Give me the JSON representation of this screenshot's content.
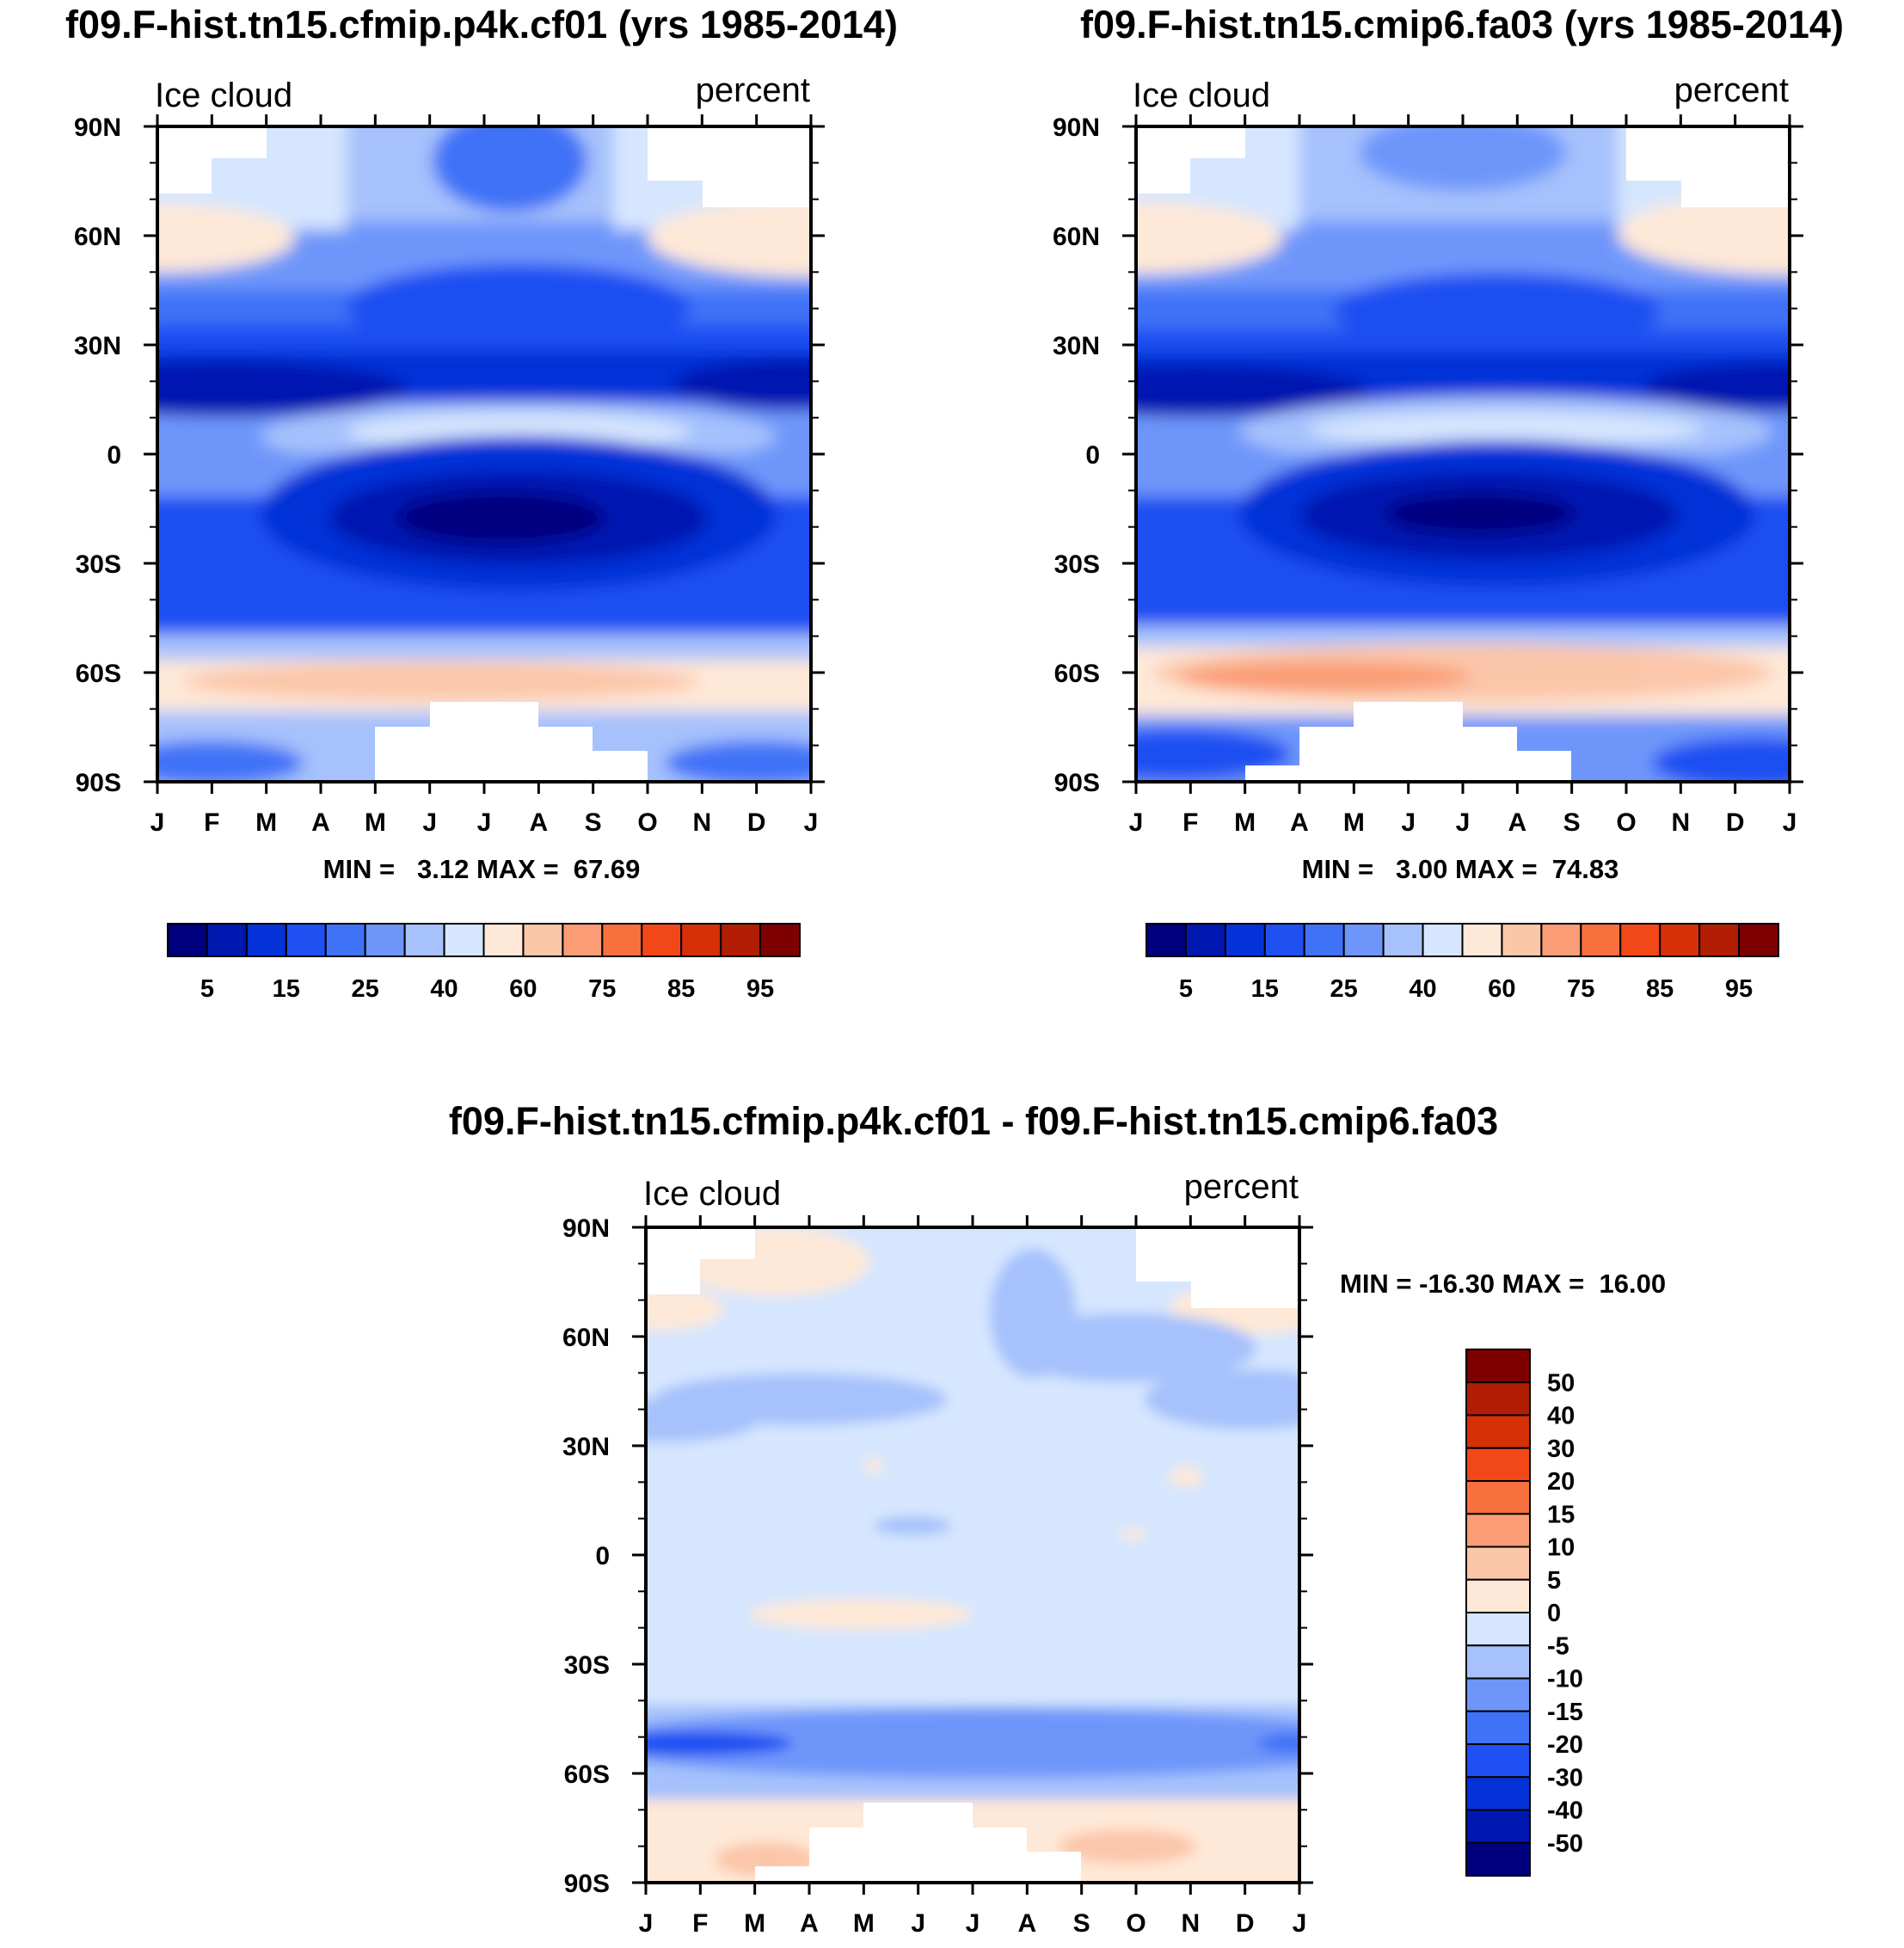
{
  "chart_data": [
    {
      "type": "heatmap",
      "title": "f09.F-hist.tn15.cfmip.p4k.cf01 (yrs 1985-2014)",
      "left_label": "Ice cloud",
      "right_label": "percent",
      "x_tick_labels": [
        "J",
        "F",
        "M",
        "A",
        "M",
        "J",
        "J",
        "A",
        "S",
        "O",
        "N",
        "D",
        "J"
      ],
      "y_tick_labels": [
        "90N",
        "60N",
        "30N",
        "0",
        "30S",
        "60S",
        "90S"
      ],
      "y_values": [
        90,
        60,
        30,
        0,
        -30,
        -60,
        -90
      ],
      "xlim": [
        0,
        12
      ],
      "ylim": [
        -90,
        90
      ],
      "minmax_text": "MIN =   3.12 MAX =  67.69",
      "min": 3.12,
      "max": 67.69,
      "colorbar_orientation": "horizontal",
      "colorbar_tick_labels": [
        "5",
        "15",
        "25",
        "40",
        "60",
        "75",
        "85",
        "95"
      ]
    },
    {
      "type": "heatmap",
      "title": "f09.F-hist.tn15.cmip6.fa03 (yrs 1985-2014)",
      "left_label": "Ice cloud",
      "right_label": "percent",
      "x_tick_labels": [
        "J",
        "F",
        "M",
        "A",
        "M",
        "J",
        "J",
        "A",
        "S",
        "O",
        "N",
        "D",
        "J"
      ],
      "y_tick_labels": [
        "90N",
        "60N",
        "30N",
        "0",
        "30S",
        "60S",
        "90S"
      ],
      "y_values": [
        90,
        60,
        30,
        0,
        -30,
        -60,
        -90
      ],
      "xlim": [
        0,
        12
      ],
      "ylim": [
        -90,
        90
      ],
      "minmax_text": "MIN =   3.00 MAX =  74.83",
      "min": 3.0,
      "max": 74.83,
      "colorbar_orientation": "horizontal",
      "colorbar_tick_labels": [
        "5",
        "15",
        "25",
        "40",
        "60",
        "75",
        "85",
        "95"
      ]
    },
    {
      "type": "heatmap",
      "title": "f09.F-hist.tn15.cfmip.p4k.cf01 - f09.F-hist.tn15.cmip6.fa03",
      "left_label": "Ice cloud",
      "right_label": "percent",
      "x_tick_labels": [
        "J",
        "F",
        "M",
        "A",
        "M",
        "J",
        "J",
        "A",
        "S",
        "O",
        "N",
        "D",
        "J"
      ],
      "y_tick_labels": [
        "90N",
        "60N",
        "30N",
        "0",
        "30S",
        "60S",
        "90S"
      ],
      "y_values": [
        90,
        60,
        30,
        0,
        -30,
        -60,
        -90
      ],
      "xlim": [
        0,
        12
      ],
      "ylim": [
        -90,
        90
      ],
      "minmax_text": "MIN = -16.30 MAX =  16.00",
      "min": -16.3,
      "max": 16.0,
      "colorbar_orientation": "vertical",
      "colorbar_tick_labels": [
        "50",
        "40",
        "30",
        "20",
        "15",
        "10",
        "5",
        "0",
        "-5",
        "-10",
        "-15",
        "-20",
        "-30",
        "-40",
        "-50"
      ]
    }
  ],
  "colorbars": {
    "abs_colors": [
      "#00007f",
      "#0018b0",
      "#0532d8",
      "#1e50f2",
      "#3f72f7",
      "#6e96fa",
      "#a6c1fc",
      "#d5e6fe",
      "#fee8d7",
      "#fcc6a9",
      "#fa9c75",
      "#f7703e",
      "#f24818",
      "#d63008",
      "#b21e04",
      "#7e0000"
    ],
    "diff_colors_top_to_bottom": [
      "#7e0000",
      "#b21e04",
      "#d63008",
      "#f24818",
      "#f7703e",
      "#fa9c75",
      "#fcc6a9",
      "#fee8d7",
      "#d5e6fe",
      "#a6c1fc",
      "#6e96fa",
      "#3f72f7",
      "#1e50f2",
      "#0532d8",
      "#0018b0",
      "#00007f"
    ]
  }
}
